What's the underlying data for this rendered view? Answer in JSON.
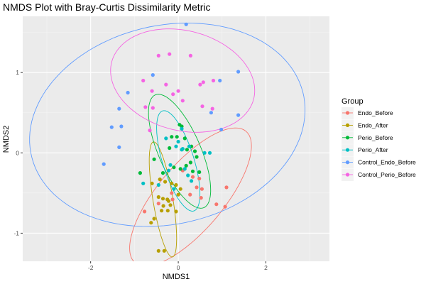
{
  "chart_data": {
    "type": "scatter",
    "title": "NMDS Plot with Bray-Curtis Dissimilarity Metric",
    "xlabel": "NMDS1",
    "ylabel": "NMDS2",
    "xlim": [
      -3.55,
      3.45
    ],
    "ylim": [
      -1.35,
      1.7
    ],
    "x_ticks": [
      -2,
      0,
      2
    ],
    "x_tick_labels": [
      "-2",
      "0",
      "2"
    ],
    "y_ticks": [
      -1,
      0,
      1
    ],
    "y_tick_labels": [
      "-1",
      "0",
      "1"
    ],
    "grid": true,
    "legend": {
      "title": "Group",
      "placement": "right"
    },
    "series": [
      {
        "name": "Endo_Before",
        "color": "#F8766D",
        "ellipse": {
          "cx": 0.28,
          "cy": -0.55,
          "rx": 1.55,
          "ry": 0.52,
          "angle_deg": 28
        },
        "points": [
          [
            0.1,
            -0.22
          ],
          [
            0.33,
            -0.3
          ],
          [
            0.48,
            -0.32
          ],
          [
            0.42,
            -0.43
          ],
          [
            0.54,
            -0.45
          ],
          [
            0.52,
            -0.56
          ],
          [
            0.27,
            -0.52
          ],
          [
            -0.15,
            -0.5
          ],
          [
            -0.13,
            -0.58
          ],
          [
            0.87,
            -0.64
          ],
          [
            1.07,
            -0.67
          ],
          [
            1.1,
            -0.43
          ],
          [
            -0.77,
            -0.73
          ],
          [
            -0.45,
            -0.63
          ]
        ]
      },
      {
        "name": "Endo_After",
        "color": "#B79F00",
        "ellipse": {
          "cx": -0.35,
          "cy": -0.58,
          "rx": 0.22,
          "ry": 0.75,
          "angle_deg": 18
        },
        "points": [
          [
            -0.6,
            -0.38
          ],
          [
            -0.42,
            -0.33
          ],
          [
            -0.3,
            -0.36
          ],
          [
            -0.15,
            -0.38
          ],
          [
            -0.05,
            -0.4
          ],
          [
            0.05,
            -0.45
          ],
          [
            -0.45,
            -0.55
          ],
          [
            -0.35,
            -0.57
          ],
          [
            -0.25,
            -0.58
          ],
          [
            -0.22,
            -0.6
          ],
          [
            -0.18,
            -0.65
          ],
          [
            -0.38,
            -0.72
          ],
          [
            -0.24,
            -0.72
          ],
          [
            -0.05,
            -0.73
          ],
          [
            -0.55,
            -0.82
          ],
          [
            -0.62,
            -0.87
          ],
          [
            -0.45,
            -1.22
          ],
          [
            -0.32,
            -1.22
          ],
          [
            -0.34,
            -0.66
          ],
          [
            0.0,
            -0.52
          ]
        ]
      },
      {
        "name": "Perio_Before",
        "color": "#00BA38",
        "ellipse": {
          "cx": 0.03,
          "cy": 0.02,
          "rx": 0.92,
          "ry": 0.4,
          "angle_deg": -45
        },
        "points": [
          [
            0.03,
            0.35
          ],
          [
            0.08,
            0.33
          ],
          [
            -0.15,
            0.2
          ],
          [
            -0.03,
            0.2
          ],
          [
            0.15,
            0.18
          ],
          [
            0.3,
            0.08
          ],
          [
            -0.2,
            0.06
          ],
          [
            0.2,
            0.04
          ],
          [
            0.38,
            0.02
          ],
          [
            0.42,
            -0.05
          ],
          [
            0.28,
            -0.12
          ],
          [
            0.18,
            -0.16
          ],
          [
            0.05,
            -0.2
          ],
          [
            -0.1,
            -0.18
          ],
          [
            0.33,
            -0.23
          ],
          [
            0.48,
            -0.24
          ],
          [
            -0.35,
            -0.25
          ],
          [
            -0.87,
            -0.25
          ],
          [
            -0.55,
            -0.08
          ]
        ]
      },
      {
        "name": "Perio_After",
        "color": "#00BFC4",
        "ellipse": {
          "cx": 0.0,
          "cy": -0.1,
          "rx": 0.73,
          "ry": 0.32,
          "angle_deg": -55
        },
        "points": [
          [
            0.08,
            0.3
          ],
          [
            -0.28,
            0.18
          ],
          [
            0.0,
            0.14
          ],
          [
            -0.05,
            0.08
          ],
          [
            0.08,
            0.04
          ],
          [
            0.25,
            0.08
          ],
          [
            0.72,
            0.0
          ],
          [
            0.15,
            -0.2
          ],
          [
            -0.18,
            -0.15
          ],
          [
            0.22,
            -0.28
          ],
          [
            0.3,
            -0.35
          ],
          [
            -0.22,
            -0.22
          ],
          [
            -0.8,
            -0.38
          ],
          [
            -0.45,
            -0.4
          ],
          [
            -0.1,
            -0.45
          ],
          [
            0.6,
            0.0
          ],
          [
            0.1,
            0.05
          ]
        ]
      },
      {
        "name": "Control_Endo_Before",
        "color": "#619CFF",
        "ellipse": {
          "cx": -0.25,
          "cy": 0.35,
          "rx": 3.15,
          "ry": 1.25,
          "angle_deg": 4
        },
        "points": [
          [
            0.18,
            1.6
          ],
          [
            -0.58,
            0.97
          ],
          [
            -1.15,
            0.75
          ],
          [
            -1.35,
            0.55
          ],
          [
            -1.3,
            0.33
          ],
          [
            -1.52,
            0.32
          ],
          [
            -1.35,
            0.07
          ],
          [
            -1.7,
            -0.14
          ],
          [
            0.75,
            0.5
          ],
          [
            1.37,
            1.01
          ],
          [
            0.95,
            0.9
          ],
          [
            1.37,
            0.47
          ],
          [
            0.98,
            0.29
          ]
        ]
      },
      {
        "name": "Control_Perio_Before",
        "color": "#F564E3",
        "ellipse": {
          "cx": 0.1,
          "cy": 0.9,
          "rx": 1.65,
          "ry": 0.63,
          "angle_deg": -5
        },
        "points": [
          [
            -0.45,
            1.21
          ],
          [
            -0.2,
            1.23
          ],
          [
            0.28,
            1.21
          ],
          [
            -0.8,
            0.9
          ],
          [
            -0.6,
            0.77
          ],
          [
            -0.28,
            0.85
          ],
          [
            -0.75,
            0.57
          ],
          [
            -0.58,
            0.56
          ],
          [
            0.0,
            0.77
          ],
          [
            0.5,
            0.85
          ],
          [
            0.57,
            0.88
          ],
          [
            0.1,
            0.65
          ],
          [
            0.55,
            0.58
          ],
          [
            0.78,
            0.55
          ],
          [
            -0.65,
            0.28
          ],
          [
            0.8,
            0.9
          ],
          [
            -0.12,
            0.73
          ]
        ]
      }
    ]
  }
}
